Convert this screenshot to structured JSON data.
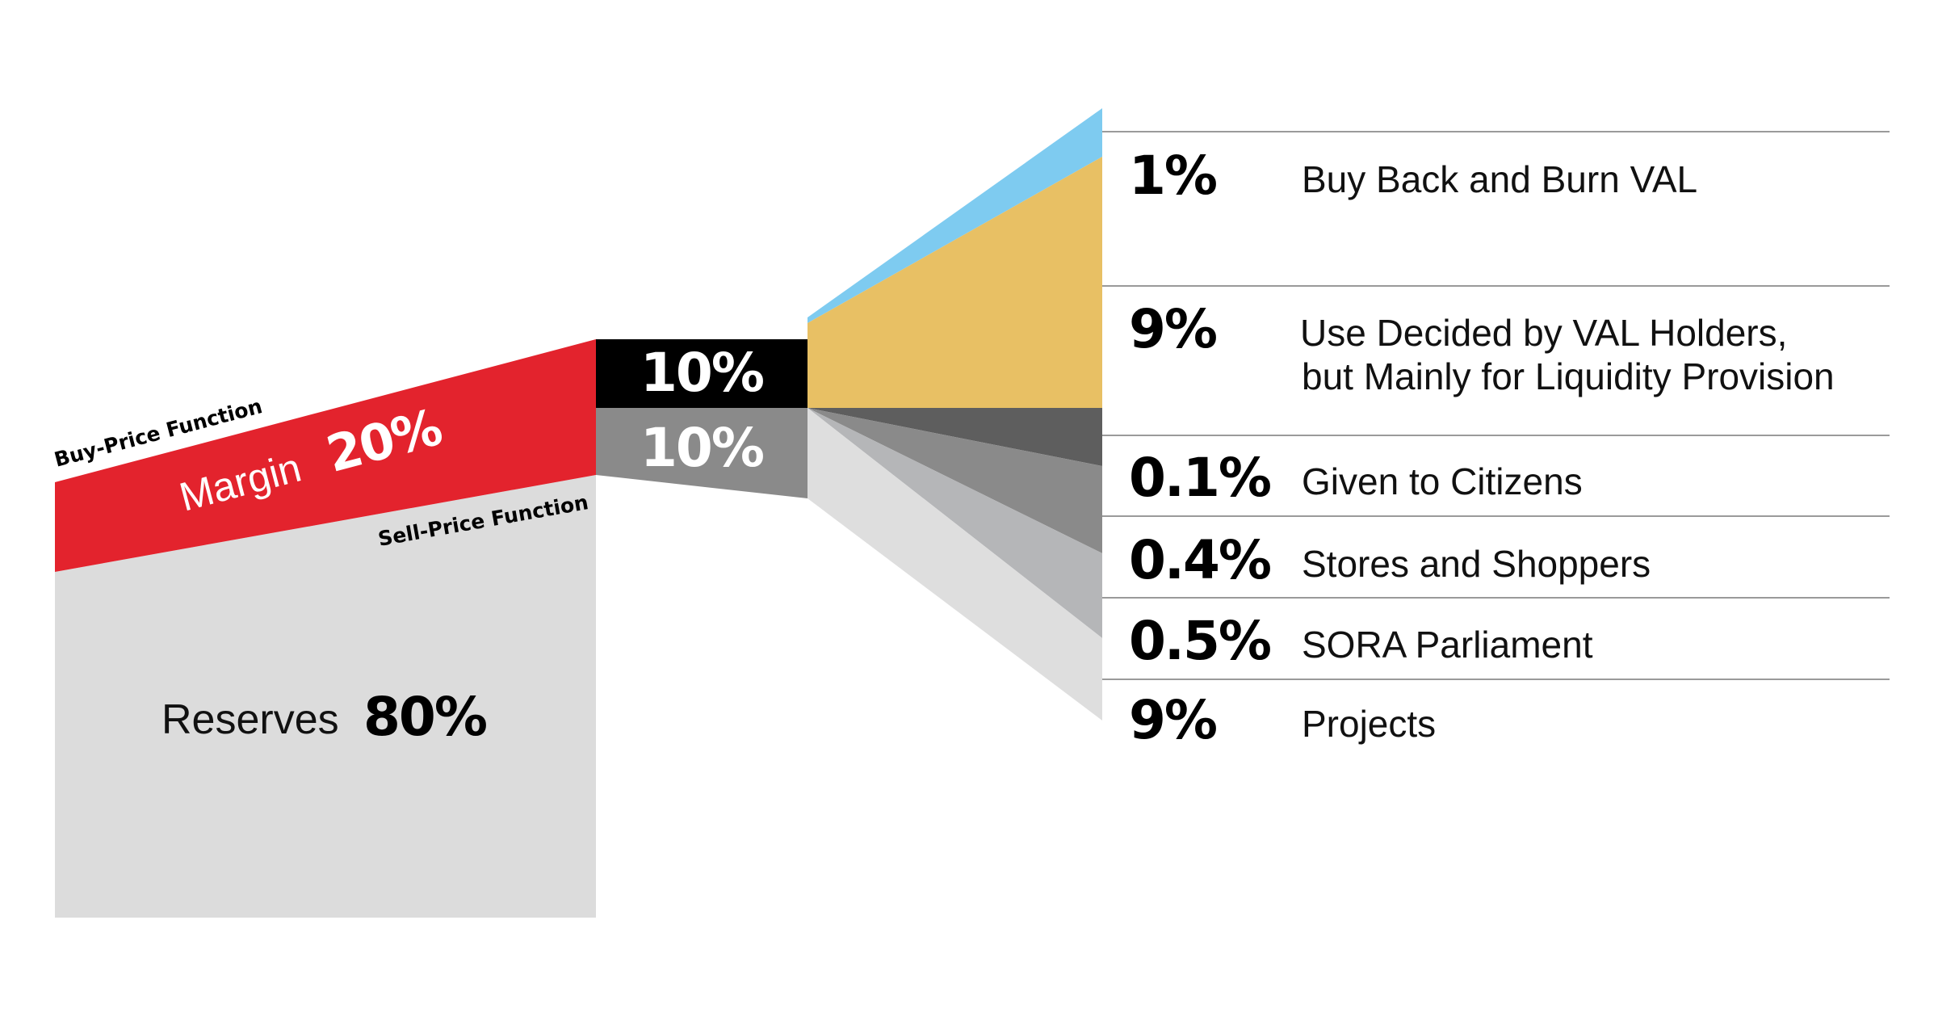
{
  "diagram": {
    "left": {
      "buy_price_label": "Buy-Price Function",
      "sell_price_label": "Sell-Price Function",
      "margin_word": "Margin",
      "margin_pct": "20%",
      "margin_value": 20,
      "reserves_word": "Reserves",
      "reserves_pct": "80%",
      "reserves_value": 80
    },
    "middle": {
      "upper_pct": "10%",
      "upper_value": 10,
      "lower_pct": "10%",
      "lower_value": 10
    },
    "rows": [
      {
        "pct": "1%",
        "value": 1,
        "line1": "Buy Back and Burn VAL",
        "line2": ""
      },
      {
        "pct": "9%",
        "value": 9,
        "line1": "Use Decided by VAL Holders,",
        "line2": "but Mainly for Liquidity Provision"
      },
      {
        "pct": "0.1%",
        "value": 0.1,
        "line1": "Given to Citizens",
        "line2": ""
      },
      {
        "pct": "0.4%",
        "value": 0.4,
        "line1": "Stores and Shoppers",
        "line2": ""
      },
      {
        "pct": "0.5%",
        "value": 0.5,
        "line1": "SORA Parliament",
        "line2": ""
      },
      {
        "pct": "9%",
        "value": 9,
        "line1": "Projects",
        "line2": ""
      }
    ],
    "colors": {
      "margin": "#e3232d",
      "reserves": "#dcdcdc",
      "upper_block": "#000000",
      "lower_block": "#8a8a8a",
      "burn": "#7ecbf0",
      "liquidity": "#e8c064",
      "citizens": "#5e5e5e",
      "stores": "#8a8a8a",
      "parliament": "#b5b6b8",
      "projects": "#dedede"
    }
  }
}
